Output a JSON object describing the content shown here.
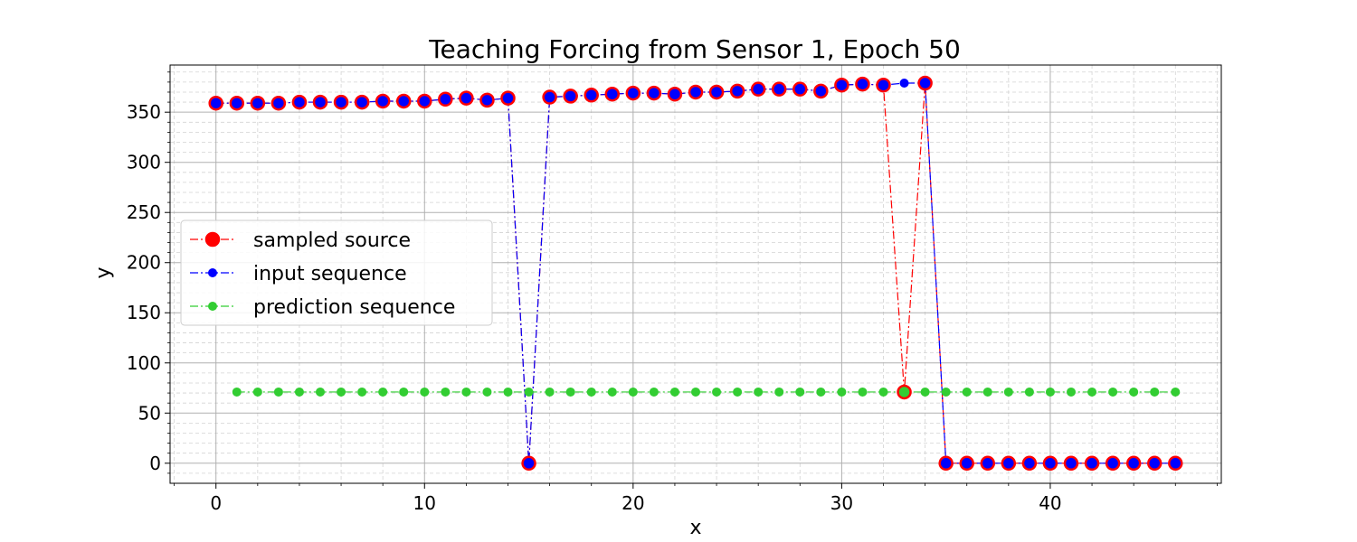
{
  "chart_data": {
    "type": "line",
    "title": "Teaching Forcing from Sensor 1, Epoch 50",
    "xlabel": "x",
    "ylabel": "y",
    "xlim": [
      -2.2,
      48.2
    ],
    "ylim": [
      -20,
      397
    ],
    "xticks": [
      0,
      10,
      20,
      30,
      40
    ],
    "yticks": [
      0,
      50,
      100,
      150,
      200,
      250,
      300,
      350
    ],
    "grid": true,
    "legend_position": "center-left",
    "series": [
      {
        "name": "sampled source",
        "color": "#ff0000",
        "marker": "large-circle",
        "x": [
          0,
          1,
          2,
          3,
          4,
          5,
          6,
          7,
          8,
          9,
          10,
          11,
          12,
          13,
          14,
          15,
          16,
          17,
          18,
          19,
          20,
          21,
          22,
          23,
          24,
          25,
          26,
          27,
          28,
          29,
          30,
          31,
          32,
          33,
          34,
          35,
          36,
          37,
          38,
          39,
          40,
          41,
          42,
          43,
          44,
          45,
          46
        ],
        "y": [
          359,
          359,
          359,
          359,
          360,
          360,
          360,
          360,
          361,
          361,
          361,
          363,
          364,
          362,
          364,
          0,
          365,
          366,
          367,
          368,
          369,
          369,
          368,
          370,
          370,
          371,
          373,
          373,
          373,
          371,
          377,
          378,
          377,
          71,
          379,
          0,
          0,
          0,
          0,
          0,
          0,
          0,
          0,
          0,
          0,
          0,
          0
        ]
      },
      {
        "name": "input sequence",
        "color": "#0000ff",
        "marker": "circle",
        "x": [
          0,
          1,
          2,
          3,
          4,
          5,
          6,
          7,
          8,
          9,
          10,
          11,
          12,
          13,
          14,
          15,
          16,
          17,
          18,
          19,
          20,
          21,
          22,
          23,
          24,
          25,
          26,
          27,
          28,
          29,
          30,
          31,
          32,
          33,
          34,
          35,
          36,
          37,
          38,
          39,
          40,
          41,
          42,
          43,
          44,
          45,
          46
        ],
        "y": [
          359,
          359,
          359,
          359,
          360,
          360,
          360,
          360,
          361,
          361,
          361,
          363,
          364,
          362,
          364,
          0,
          365,
          366,
          367,
          368,
          369,
          369,
          368,
          370,
          370,
          371,
          373,
          373,
          373,
          371,
          377,
          378,
          377,
          379,
          379,
          0,
          0,
          0,
          0,
          0,
          0,
          0,
          0,
          0,
          0,
          0,
          0
        ]
      },
      {
        "name": "prediction sequence",
        "color": "#32cd32",
        "marker": "circle",
        "x": [
          1,
          2,
          3,
          4,
          5,
          6,
          7,
          8,
          9,
          10,
          11,
          12,
          13,
          14,
          15,
          16,
          17,
          18,
          19,
          20,
          21,
          22,
          23,
          24,
          25,
          26,
          27,
          28,
          29,
          30,
          31,
          32,
          33,
          34,
          35,
          36,
          37,
          38,
          39,
          40,
          41,
          42,
          43,
          44,
          45,
          46
        ],
        "y": [
          71,
          71,
          71,
          71,
          71,
          71,
          71,
          71,
          71,
          71,
          71,
          71,
          71,
          71,
          71,
          71,
          71,
          71,
          71,
          71,
          71,
          71,
          71,
          71,
          71,
          71,
          71,
          71,
          71,
          71,
          71,
          71,
          71,
          71,
          71,
          71,
          71,
          71,
          71,
          71,
          71,
          71,
          71,
          71,
          71,
          71
        ]
      }
    ]
  }
}
